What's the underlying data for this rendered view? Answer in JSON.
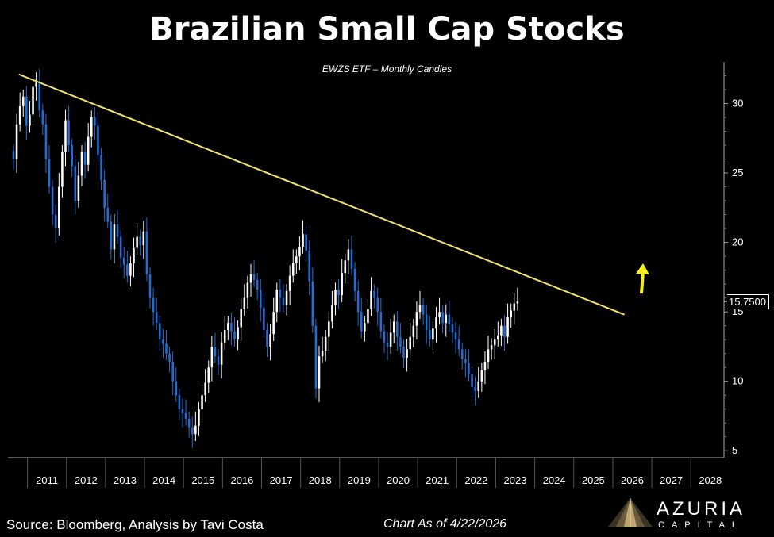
{
  "header": {
    "title": "Brazilian Small Cap Stocks",
    "subtitle": "EWZS ETF – Monthly Candles"
  },
  "footer": {
    "source": "Source: Bloomberg, Analysis by Tavi Costa",
    "as_of": "Chart As of 4/22/2026",
    "logo_name": "AZURIA",
    "logo_sub": "CAPITAL"
  },
  "price_label": "15.7500",
  "colors": {
    "up": "#ffffff",
    "down": "#1f6fd6",
    "trendline": "#f2e36b",
    "arrow": "#f5ef1c",
    "background": "#000000"
  },
  "chart_data": {
    "type": "candlestick",
    "title": "Brazilian Small Cap Stocks",
    "subtitle": "EWZS ETF – Monthly Candles",
    "x_ticks": [
      "2011",
      "2012",
      "2013",
      "2014",
      "2015",
      "2016",
      "2017",
      "2018",
      "2019",
      "2020",
      "2021",
      "2022",
      "2023",
      "2024",
      "2025",
      "2026",
      "2027",
      "2028"
    ],
    "y_ticks": [
      5,
      10,
      15,
      20,
      25,
      30
    ],
    "ylim": [
      4.5,
      33
    ],
    "x_domain": [
      2010.5,
      2028.85
    ],
    "last_price": 15.75,
    "closes": [
      26.0,
      28.5,
      29.8,
      30.5,
      28.4,
      29.2,
      31.2,
      31.5,
      29.5,
      28.5,
      26.0,
      24.0,
      22.0,
      21.0,
      24.0,
      26.5,
      28.8,
      27.0,
      25.5,
      23.0,
      24.8,
      26.5,
      25.6,
      27.6,
      29.0,
      28.4,
      26.3,
      24.5,
      22.5,
      21.5,
      19.5,
      21.3,
      20.4,
      18.9,
      18.4,
      17.6,
      18.5,
      19.6,
      20.4,
      19.8,
      20.8,
      17.7,
      16.0,
      15.0,
      14.2,
      13.0,
      12.7,
      12.0,
      11.4,
      10.0,
      9.0,
      8.0,
      7.7,
      7.3,
      6.7,
      6.2,
      6.8,
      8.0,
      9.0,
      9.9,
      11.0,
      12.5,
      11.8,
      11.2,
      12.8,
      13.7,
      14.2,
      13.6,
      13.0,
      13.9,
      15.2,
      16.0,
      17.1,
      17.7,
      17.3,
      16.6,
      15.3,
      13.7,
      12.5,
      13.4,
      15.0,
      16.6,
      16.0,
      15.5,
      16.5,
      17.6,
      18.5,
      19.0,
      19.7,
      20.6,
      19.4,
      17.2,
      14.0,
      9.5,
      11.8,
      12.2,
      13.2,
      14.3,
      15.5,
      16.6,
      16.2,
      17.8,
      18.7,
      19.5,
      18.1,
      16.5,
      15.0,
      13.6,
      14.2,
      15.2,
      16.5,
      16.0,
      15.0,
      13.6,
      12.8,
      12.5,
      13.5,
      14.3,
      13.2,
      12.5,
      11.7,
      12.3,
      13.2,
      14.0,
      15.0,
      15.5,
      14.8,
      13.7,
      13.0,
      13.8,
      14.6,
      15.0,
      14.2,
      14.8,
      14.1,
      13.5,
      13.0,
      12.3,
      11.6,
      11.3,
      10.5,
      9.6,
      9.3,
      10.0,
      10.8,
      11.4,
      12.3,
      12.6,
      13.0,
      13.3,
      14.0,
      13.2,
      14.6,
      15.1,
      15.6,
      15.75
    ]
  }
}
